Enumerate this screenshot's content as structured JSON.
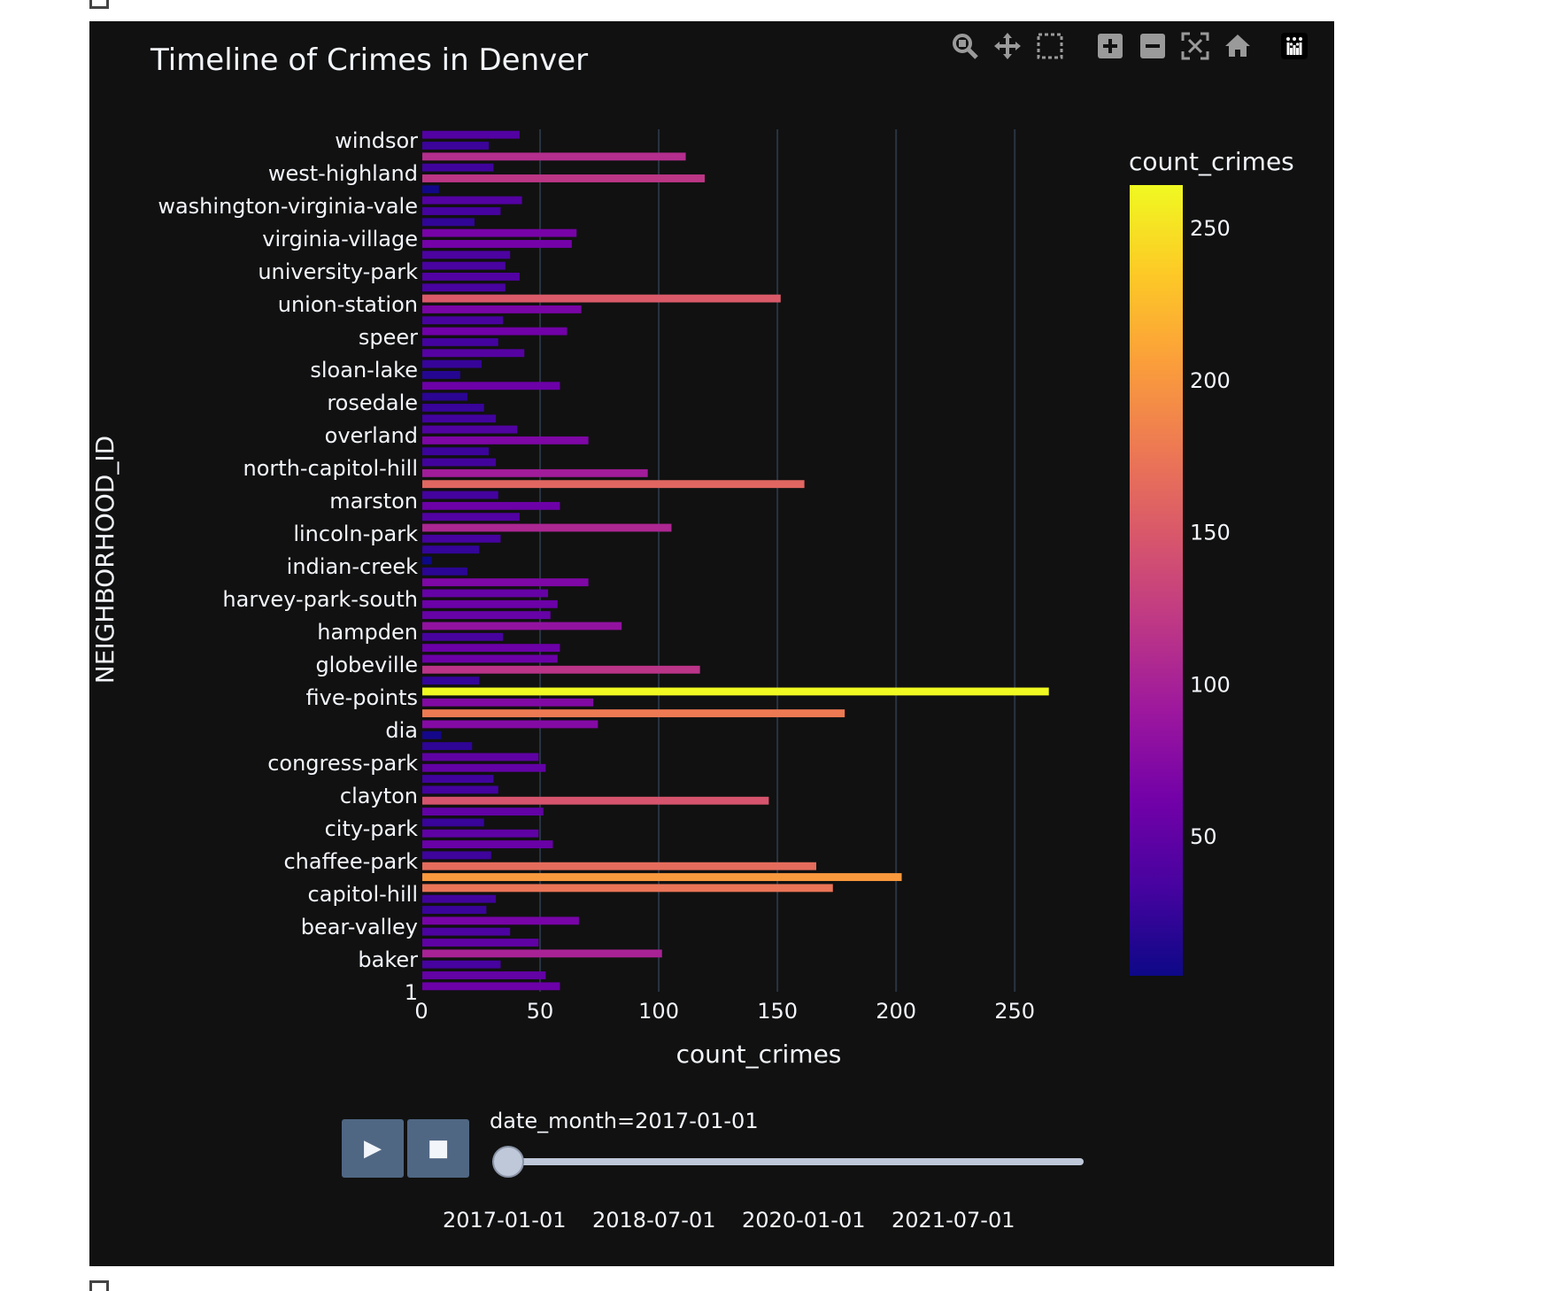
{
  "chart_data": {
    "type": "bar",
    "orientation": "horizontal",
    "title": "Timeline of Crimes in Denver",
    "xlabel": "count_crimes",
    "ylabel": "NEIGHBORHOOD_ID",
    "xlim": [
      0,
      285
    ],
    "x_ticks": [
      0,
      50,
      100,
      150,
      200,
      250
    ],
    "colorbar": {
      "title": "count_crimes",
      "ticks": [
        50,
        100,
        150,
        200,
        250
      ],
      "range": [
        4,
        264
      ],
      "colorscale": "plasma"
    },
    "y_tick_labels": [
      "windsor",
      "west-highland",
      "washington-virginia-vale",
      "virginia-village",
      "university-park",
      "union-station",
      "speer",
      "sloan-lake",
      "rosedale",
      "overland",
      "north-capitol-hill",
      "marston",
      "lincoln-park",
      "indian-creek",
      "harvey-park-south",
      "hampden",
      "globeville",
      "five-points",
      "dia",
      "congress-park",
      "clayton",
      "city-park",
      "chaffee-park",
      "capitol-hill",
      "bear-valley",
      "baker",
      "1"
    ],
    "values": [
      41,
      28,
      111,
      30,
      119,
      7,
      42,
      33,
      22,
      65,
      63,
      37,
      35,
      41,
      35,
      151,
      67,
      34,
      61,
      32,
      43,
      25,
      16,
      58,
      19,
      26,
      31,
      40,
      70,
      28,
      31,
      95,
      161,
      32,
      58,
      41,
      105,
      33,
      24,
      4,
      19,
      70,
      53,
      57,
      54,
      84,
      34,
      58,
      57,
      117,
      24,
      264,
      72,
      178,
      74,
      8,
      21,
      49,
      52,
      30,
      32,
      146,
      51,
      26,
      49,
      55,
      29,
      166,
      202,
      173,
      31,
      27,
      66,
      37,
      49,
      101,
      33,
      52,
      58
    ]
  },
  "slider": {
    "current_label": "date_month=2017-01-01",
    "step_labels": [
      "2017-01-01",
      "2018-07-01",
      "2020-01-01",
      "2021-07-01"
    ],
    "position": 0,
    "play_symbol": "▶",
    "stop_symbol": "■"
  },
  "modebar": {
    "icons": [
      "zoom-icon",
      "pan-icon",
      "box-select-icon",
      "zoom-in-icon",
      "zoom-out-icon",
      "autoscale-icon",
      "reset-axes-icon",
      "plotly-logo-icon"
    ]
  }
}
